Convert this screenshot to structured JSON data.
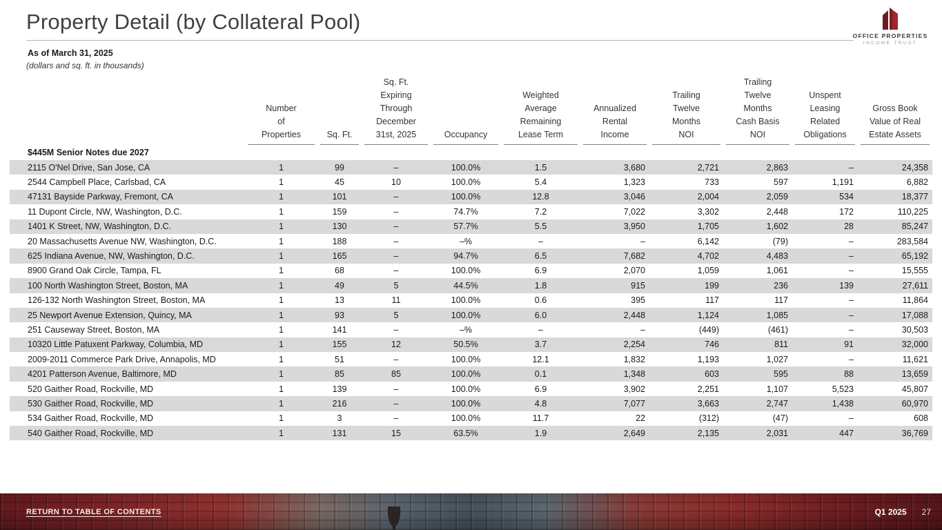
{
  "header": {
    "title": "Property Detail (by Collateral Pool)",
    "as_of": "As of March 31, 2025",
    "units_note": "(dollars and sq. ft. in thousands)",
    "logo": {
      "name": "OFFICE PROPERTIES",
      "subname": "INCOME TRUST",
      "brand_color": "#8a1f24"
    }
  },
  "table": {
    "columns": [
      "",
      "Number\nof\nProperties",
      "Sq. Ft.",
      "Sq. Ft.\nExpiring\nThrough\nDecember\n31st, 2025",
      "Occupancy",
      "Weighted\nAverage\nRemaining\nLease Term",
      "Annualized\nRental\nIncome",
      "Trailing\nTwelve\nMonths\nNOI",
      "Trailing\nTwelve\nMonths\nCash Basis\nNOI",
      "Unspent\nLeasing\nRelated\nObligations",
      "Gross Book\nValue of Real\nEstate Assets"
    ],
    "section_label": "$445M Senior Notes due 2027",
    "rows": [
      [
        "2115 O'Nel Drive, San Jose, CA",
        "1",
        "99",
        "–",
        "100.0%",
        "1.5",
        "3,680",
        "2,721",
        "2,863",
        "–",
        "24,358"
      ],
      [
        "2544 Campbell Place, Carlsbad, CA",
        "1",
        "45",
        "10",
        "100.0%",
        "5.4",
        "1,323",
        "733",
        "597",
        "1,191",
        "6,882"
      ],
      [
        "47131 Bayside Parkway, Fremont, CA",
        "1",
        "101",
        "–",
        "100.0%",
        "12.8",
        "3,046",
        "2,004",
        "2,059",
        "534",
        "18,377"
      ],
      [
        "11 Dupont Circle, NW, Washington, D.C.",
        "1",
        "159",
        "–",
        "74.7%",
        "7.2",
        "7,022",
        "3,302",
        "2,448",
        "172",
        "110,225"
      ],
      [
        "1401 K Street, NW, Washington, D.C.",
        "1",
        "130",
        "–",
        "57.7%",
        "5.5",
        "3,950",
        "1,705",
        "1,602",
        "28",
        "85,247"
      ],
      [
        "20 Massachusetts Avenue NW, Washington, D.C.",
        "1",
        "188",
        "–",
        "–%",
        "–",
        "–",
        "6,142",
        "(79)",
        "–",
        "283,584"
      ],
      [
        "625 Indiana Avenue, NW, Washington, D.C.",
        "1",
        "165",
        "–",
        "94.7%",
        "6.5",
        "7,682",
        "4,702",
        "4,483",
        "–",
        "65,192"
      ],
      [
        "8900 Grand Oak Circle, Tampa, FL",
        "1",
        "68",
        "–",
        "100.0%",
        "6.9",
        "2,070",
        "1,059",
        "1,061",
        "–",
        "15,555"
      ],
      [
        "100 North Washington Street, Boston, MA",
        "1",
        "49",
        "5",
        "44.5%",
        "1.8",
        "915",
        "199",
        "236",
        "139",
        "27,611"
      ],
      [
        "126-132 North Washington Street, Boston, MA",
        "1",
        "13",
        "11",
        "100.0%",
        "0.6",
        "395",
        "117",
        "117",
        "–",
        "11,864"
      ],
      [
        "25 Newport Avenue Extension, Quincy, MA",
        "1",
        "93",
        "5",
        "100.0%",
        "6.0",
        "2,448",
        "1,124",
        "1,085",
        "–",
        "17,088"
      ],
      [
        "251 Causeway Street, Boston, MA",
        "1",
        "141",
        "–",
        "–%",
        "–",
        "–",
        "(449)",
        "(461)",
        "–",
        "30,503"
      ],
      [
        "10320 Little Patuxent Parkway, Columbia, MD",
        "1",
        "155",
        "12",
        "50.5%",
        "3.7",
        "2,254",
        "746",
        "811",
        "91",
        "32,000"
      ],
      [
        "2009-2011 Commerce Park Drive, Annapolis, MD",
        "1",
        "51",
        "–",
        "100.0%",
        "12.1",
        "1,832",
        "1,193",
        "1,027",
        "–",
        "11,621"
      ],
      [
        "4201 Patterson Avenue, Baltimore, MD",
        "1",
        "85",
        "85",
        "100.0%",
        "0.1",
        "1,348",
        "603",
        "595",
        "88",
        "13,659"
      ],
      [
        "520 Gaither Road, Rockville, MD",
        "1",
        "139",
        "–",
        "100.0%",
        "6.9",
        "3,902",
        "2,251",
        "1,107",
        "5,523",
        "45,807"
      ],
      [
        "530 Gaither Road, Rockville, MD",
        "1",
        "216",
        "–",
        "100.0%",
        "4.8",
        "7,077",
        "3,663",
        "2,747",
        "1,438",
        "60,970"
      ],
      [
        "534 Gaither Road, Rockville, MD",
        "1",
        "3",
        "–",
        "100.0%",
        "11.7",
        "22",
        "(312)",
        "(47)",
        "–",
        "608"
      ],
      [
        "540 Gaither Road, Rockville, MD",
        "1",
        "131",
        "15",
        "63.5%",
        "1.9",
        "2,649",
        "2,135",
        "2,031",
        "447",
        "36,769"
      ]
    ]
  },
  "footer": {
    "return_link": "RETURN TO TABLE OF CONTENTS",
    "quarter": "Q1 2025",
    "page": "27"
  }
}
